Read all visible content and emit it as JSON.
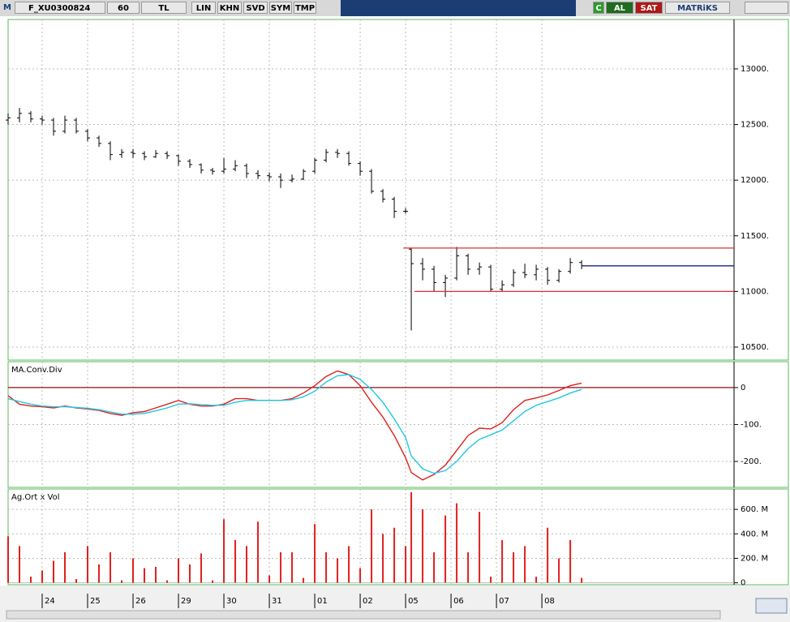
{
  "toolbar": {
    "logo": "M",
    "symbol": "F_XU0300824",
    "period": "60",
    "currency": "TL",
    "buttons": [
      "LIN",
      "KHN",
      "SVD",
      "SYM",
      "TMP"
    ],
    "status": "C",
    "buy": "AL",
    "sell": "SAT",
    "brand": "MATRiKS"
  },
  "chart_data": [
    {
      "type": "ohlc",
      "color": "#000000",
      "x": [
        -0.75,
        -0.5,
        -0.25,
        0,
        0.25,
        0.5,
        0.75,
        1,
        1.25,
        1.5,
        1.75,
        2,
        2.25,
        2.5,
        2.75,
        3,
        3.25,
        3.5,
        3.75,
        4,
        4.25,
        4.5,
        4.75,
        5,
        5.25,
        5.5,
        5.75,
        6,
        6.25,
        6.5,
        6.75,
        7,
        7.25,
        7.5,
        7.75,
        8,
        8.125,
        8.375,
        8.625,
        8.875,
        9.125,
        9.375,
        9.625,
        9.875,
        10.125,
        10.375,
        10.625,
        10.875,
        11.125,
        11.375,
        11.625,
        11.875
      ],
      "open": [
        12540,
        12560,
        12600,
        12550,
        12540,
        12440,
        12540,
        12440,
        12380,
        12330,
        12230,
        12250,
        12240,
        12210,
        12240,
        12220,
        12170,
        12140,
        12090,
        12080,
        12100,
        12130,
        12060,
        12040,
        12030,
        12000,
        12010,
        12080,
        12180,
        12250,
        12240,
        12150,
        12080,
        11900,
        11830,
        11720,
        11380,
        11250,
        11200,
        11080,
        11120,
        11320,
        11200,
        11220,
        11020,
        11060,
        11170,
        11150,
        11200,
        11100,
        11180,
        11260
      ],
      "high": [
        12600,
        12650,
        12620,
        12580,
        12560,
        12580,
        12560,
        12460,
        12400,
        12350,
        12280,
        12280,
        12260,
        12270,
        12260,
        12230,
        12190,
        12150,
        12110,
        12200,
        12180,
        12150,
        12090,
        12070,
        12060,
        12050,
        12100,
        12200,
        12280,
        12280,
        12260,
        12170,
        12100,
        11920,
        11850,
        11750,
        11390,
        11300,
        11230,
        11150,
        11400,
        11340,
        11260,
        11240,
        11100,
        11200,
        11250,
        11240,
        11220,
        11200,
        11300,
        11280
      ],
      "low": [
        12500,
        12520,
        12520,
        12500,
        12400,
        12420,
        12420,
        12350,
        12300,
        12180,
        12200,
        12200,
        12180,
        12200,
        12190,
        12130,
        12110,
        12060,
        12050,
        12060,
        12080,
        12020,
        12010,
        11990,
        11930,
        11980,
        12000,
        12060,
        12160,
        12200,
        12130,
        12040,
        11880,
        11800,
        11660,
        11700,
        10650,
        11100,
        11000,
        10950,
        11100,
        11150,
        11150,
        11000,
        11000,
        11040,
        11120,
        11100,
        11060,
        11080,
        11160,
        11200
      ],
      "close": [
        12560,
        12600,
        12550,
        12540,
        12440,
        12540,
        12440,
        12380,
        12330,
        12230,
        12250,
        12240,
        12210,
        12240,
        12220,
        12170,
        12140,
        12090,
        12080,
        12100,
        12130,
        12060,
        12040,
        12030,
        12000,
        12010,
        12080,
        12180,
        12250,
        12240,
        12150,
        12080,
        11900,
        11830,
        11720,
        11720,
        11250,
        11200,
        11080,
        11120,
        11320,
        11200,
        11220,
        11020,
        11060,
        11170,
        11150,
        11200,
        11100,
        11180,
        11260,
        11230
      ],
      "levels": [
        {
          "value": 11390,
          "color": "#e03030",
          "from": 7.95
        },
        {
          "value": 11000,
          "color": "#e03030",
          "from": 8.2
        },
        {
          "value": 11230,
          "color": "#1a237e",
          "from": 11.875
        }
      ],
      "xlim": [
        -0.75,
        15.23
      ],
      "xticks": [
        {
          "value": 0,
          "label": "24"
        },
        {
          "value": 1,
          "label": "25"
        },
        {
          "value": 2,
          "label": "26"
        },
        {
          "value": 3,
          "label": "29"
        },
        {
          "value": 4,
          "label": "30"
        },
        {
          "value": 5,
          "label": "31"
        },
        {
          "value": 6,
          "label": "01"
        },
        {
          "value": 7,
          "label": "02"
        },
        {
          "value": 8,
          "label": "05"
        },
        {
          "value": 9,
          "label": "06"
        },
        {
          "value": 10,
          "label": "07"
        },
        {
          "value": 11,
          "label": "08"
        }
      ],
      "ylim": [
        10398,
        13415
      ],
      "yticks": [
        {
          "value": 10500,
          "label": "10500."
        },
        {
          "value": 11000,
          "label": "11000."
        },
        {
          "value": 11500,
          "label": "11500."
        },
        {
          "value": 12000,
          "label": "12000."
        },
        {
          "value": 12500,
          "label": "12500."
        },
        {
          "value": 13000,
          "label": "13000."
        }
      ],
      "grid": true
    },
    {
      "type": "line",
      "title": "MA.Conv.Div",
      "x": [
        -0.75,
        -0.5,
        -0.25,
        0,
        0.25,
        0.5,
        0.75,
        1,
        1.25,
        1.5,
        1.75,
        2,
        2.25,
        2.5,
        2.75,
        3,
        3.25,
        3.5,
        3.75,
        4,
        4.25,
        4.5,
        4.75,
        5,
        5.25,
        5.5,
        5.75,
        6,
        6.25,
        6.5,
        6.75,
        7,
        7.25,
        7.5,
        7.75,
        8,
        8.125,
        8.375,
        8.625,
        8.875,
        9.125,
        9.375,
        9.625,
        9.875,
        10.125,
        10.375,
        10.625,
        10.875,
        11.125,
        11.375,
        11.625,
        11.875
      ],
      "series": [
        {
          "color": "#e02020",
          "values": [
            -22,
            -45,
            -50,
            -52,
            -55,
            -50,
            -55,
            -58,
            -62,
            -70,
            -75,
            -68,
            -65,
            -55,
            -45,
            -35,
            -45,
            -50,
            -50,
            -45,
            -30,
            -30,
            -35,
            -35,
            -35,
            -30,
            -15,
            5,
            30,
            45,
            35,
            5,
            -40,
            -80,
            -130,
            -190,
            -230,
            -250,
            -235,
            -210,
            -170,
            -130,
            -110,
            -112,
            -95,
            -60,
            -35,
            -28,
            -20,
            -8,
            5,
            12
          ]
        },
        {
          "color": "#22c8e0",
          "values": [
            -30,
            -38,
            -45,
            -50,
            -52,
            -52,
            -54,
            -56,
            -60,
            -66,
            -72,
            -72,
            -70,
            -63,
            -55,
            -45,
            -44,
            -46,
            -48,
            -48,
            -40,
            -35,
            -35,
            -35,
            -35,
            -33,
            -25,
            -10,
            15,
            32,
            35,
            22,
            -5,
            -40,
            -85,
            -135,
            -185,
            -220,
            -232,
            -225,
            -200,
            -165,
            -140,
            -128,
            -115,
            -90,
            -65,
            -48,
            -38,
            -28,
            -15,
            -5
          ]
        }
      ],
      "hline": {
        "value": 0,
        "color": "#8b1010"
      },
      "xlim": [
        -0.75,
        15.23
      ],
      "ylim": [
        -268,
        70
      ],
      "yticks": [
        {
          "value": -200,
          "label": "-200."
        },
        {
          "value": -100,
          "label": "-100."
        },
        0
      ],
      "grid": true
    },
    {
      "type": "bar",
      "title": "Ag.Ort x Vol",
      "color": "#e02020",
      "x": [
        -0.75,
        -0.5,
        -0.25,
        0,
        0.25,
        0.5,
        0.75,
        1,
        1.25,
        1.5,
        1.75,
        2,
        2.25,
        2.5,
        2.75,
        3,
        3.25,
        3.5,
        3.75,
        4,
        4.25,
        4.5,
        4.75,
        5,
        5.25,
        5.5,
        5.75,
        6,
        6.25,
        6.5,
        6.75,
        7,
        7.25,
        7.5,
        7.75,
        8,
        8.125,
        8.375,
        8.625,
        8.875,
        9.125,
        9.375,
        9.625,
        9.875,
        10.125,
        10.375,
        10.625,
        10.875,
        11.125,
        11.375,
        11.625,
        11.875
      ],
      "values": [
        380,
        300,
        50,
        100,
        180,
        250,
        30,
        300,
        150,
        250,
        20,
        200,
        120,
        130,
        20,
        200,
        150,
        240,
        20,
        520,
        350,
        300,
        500,
        60,
        250,
        250,
        40,
        480,
        250,
        200,
        300,
        120,
        600,
        400,
        450,
        300,
        740,
        600,
        250,
        550,
        650,
        250,
        580,
        50,
        350,
        250,
        300,
        50,
        450,
        200,
        350,
        40
      ],
      "xlim": [
        -0.75,
        15.23
      ],
      "ylim": [
        -9,
        760
      ],
      "yticks": [
        0,
        {
          "value": 200,
          "label": "200. M"
        },
        {
          "value": 400,
          "label": "400. M"
        },
        {
          "value": 600,
          "label": "600. M"
        }
      ],
      "grid": true
    }
  ]
}
